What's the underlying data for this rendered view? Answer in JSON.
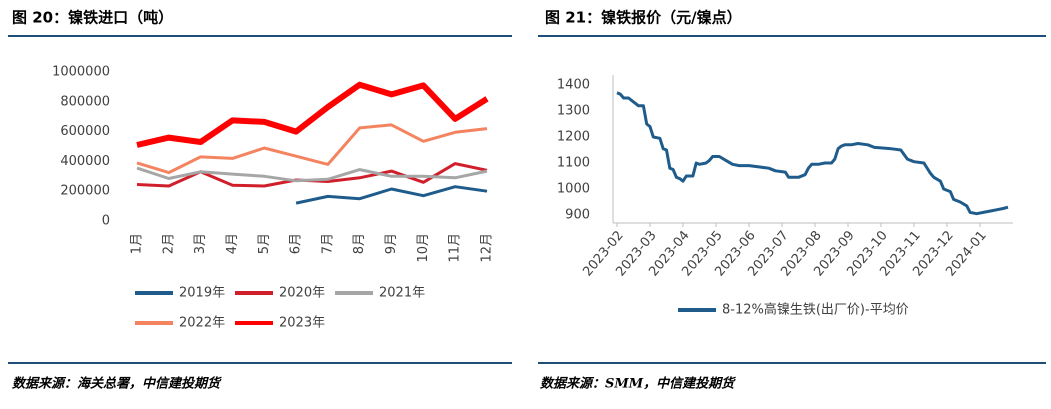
{
  "chart_data": [
    {
      "type": "line",
      "title": "图 20：镍铁进口（吨）",
      "note": "数据来源：海关总署，中信建投期货",
      "categories": [
        "1月",
        "2月",
        "3月",
        "4月",
        "5月",
        "6月",
        "7月",
        "8月",
        "9月",
        "10月",
        "11月",
        "12月"
      ],
      "ylim": [
        0,
        1000000
      ],
      "yticks": [
        0,
        200000,
        400000,
        600000,
        800000,
        1000000
      ],
      "grid": false,
      "legend": "bottom",
      "series": [
        {
          "name": "2019年",
          "color": "#1f5c8b",
          "linewidth": 3,
          "values": [
            null,
            null,
            null,
            null,
            null,
            120000,
            165000,
            150000,
            215000,
            170000,
            230000,
            200000
          ]
        },
        {
          "name": "2020年",
          "color": "#d01f2b",
          "linewidth": 3,
          "values": [
            245000,
            235000,
            330000,
            240000,
            235000,
            275000,
            265000,
            290000,
            335000,
            260000,
            385000,
            340000
          ]
        },
        {
          "name": "2021年",
          "color": "#a6a6a6",
          "linewidth": 3,
          "values": [
            355000,
            285000,
            330000,
            315000,
            300000,
            270000,
            280000,
            345000,
            300000,
            300000,
            290000,
            335000
          ]
        },
        {
          "name": "2022年",
          "color": "#f4845f",
          "linewidth": 3,
          "values": [
            390000,
            325000,
            430000,
            420000,
            490000,
            435000,
            380000,
            625000,
            645000,
            535000,
            595000,
            620000
          ]
        },
        {
          "name": "2023年",
          "color": "#ff0000",
          "linewidth": 6,
          "values": [
            510000,
            560000,
            530000,
            675000,
            665000,
            600000,
            765000,
            915000,
            850000,
            910000,
            685000,
            820000
          ]
        }
      ]
    },
    {
      "type": "line",
      "title": "图 21：镍铁报价（元/镍点）",
      "note": "数据来源：SMM，中信建投期货",
      "xlim": [
        0,
        12
      ],
      "xticks": [
        {
          "value": 0,
          "label": "2023-02"
        },
        {
          "value": 1,
          "label": "2023-03"
        },
        {
          "value": 2,
          "label": "2023-04"
        },
        {
          "value": 3,
          "label": "2023-05"
        },
        {
          "value": 4,
          "label": "2023-06"
        },
        {
          "value": 5,
          "label": "2023-07"
        },
        {
          "value": 6,
          "label": "2023-08"
        },
        {
          "value": 7,
          "label": "2023-09"
        },
        {
          "value": 8,
          "label": "2023-10"
        },
        {
          "value": 9,
          "label": "2023-11"
        },
        {
          "value": 10,
          "label": "2023-12"
        },
        {
          "value": 11,
          "label": "2024-01"
        }
      ],
      "ylim": [
        900,
        1400
      ],
      "yticks": [
        900,
        1000,
        1100,
        1200,
        1300,
        1400
      ],
      "grid": false,
      "legend": "bottom",
      "x": [
        0,
        0.1,
        0.2,
        0.35,
        0.5,
        0.65,
        0.8,
        0.9,
        1.0,
        1.1,
        1.3,
        1.4,
        1.5,
        1.6,
        1.7,
        1.8,
        1.9,
        2.0,
        2.1,
        2.3,
        2.4,
        2.5,
        2.7,
        2.8,
        2.9,
        3.1,
        3.3,
        3.5,
        3.7,
        4.0,
        4.3,
        4.6,
        4.8,
        5.1,
        5.2,
        5.5,
        5.7,
        5.8,
        5.9,
        6.1,
        6.3,
        6.5,
        6.6,
        6.7,
        6.8,
        6.9,
        7.1,
        7.3,
        7.6,
        7.8,
        8.0,
        8.3,
        8.6,
        8.8,
        9.0,
        9.3,
        9.5,
        9.6,
        9.8,
        9.9,
        10.1,
        10.2,
        10.4,
        10.6,
        10.7,
        10.9,
        11.1,
        11.3,
        11.5,
        11.7,
        11.85
      ],
      "series": [
        {
          "name": "8-12%高镍生铁(出厂价)-平均价",
          "color": "#1f5c8b",
          "linewidth": 3,
          "values": [
            1370,
            1365,
            1350,
            1350,
            1335,
            1320,
            1320,
            1250,
            1240,
            1200,
            1195,
            1155,
            1150,
            1080,
            1075,
            1045,
            1040,
            1030,
            1050,
            1050,
            1100,
            1095,
            1100,
            1110,
            1125,
            1125,
            1110,
            1095,
            1090,
            1090,
            1085,
            1080,
            1070,
            1065,
            1045,
            1045,
            1055,
            1080,
            1095,
            1095,
            1100,
            1100,
            1115,
            1155,
            1165,
            1170,
            1170,
            1175,
            1170,
            1160,
            1158,
            1155,
            1150,
            1115,
            1105,
            1100,
            1060,
            1045,
            1030,
            1000,
            990,
            960,
            950,
            935,
            910,
            905,
            910,
            915,
            920,
            925,
            930
          ]
        }
      ]
    }
  ]
}
